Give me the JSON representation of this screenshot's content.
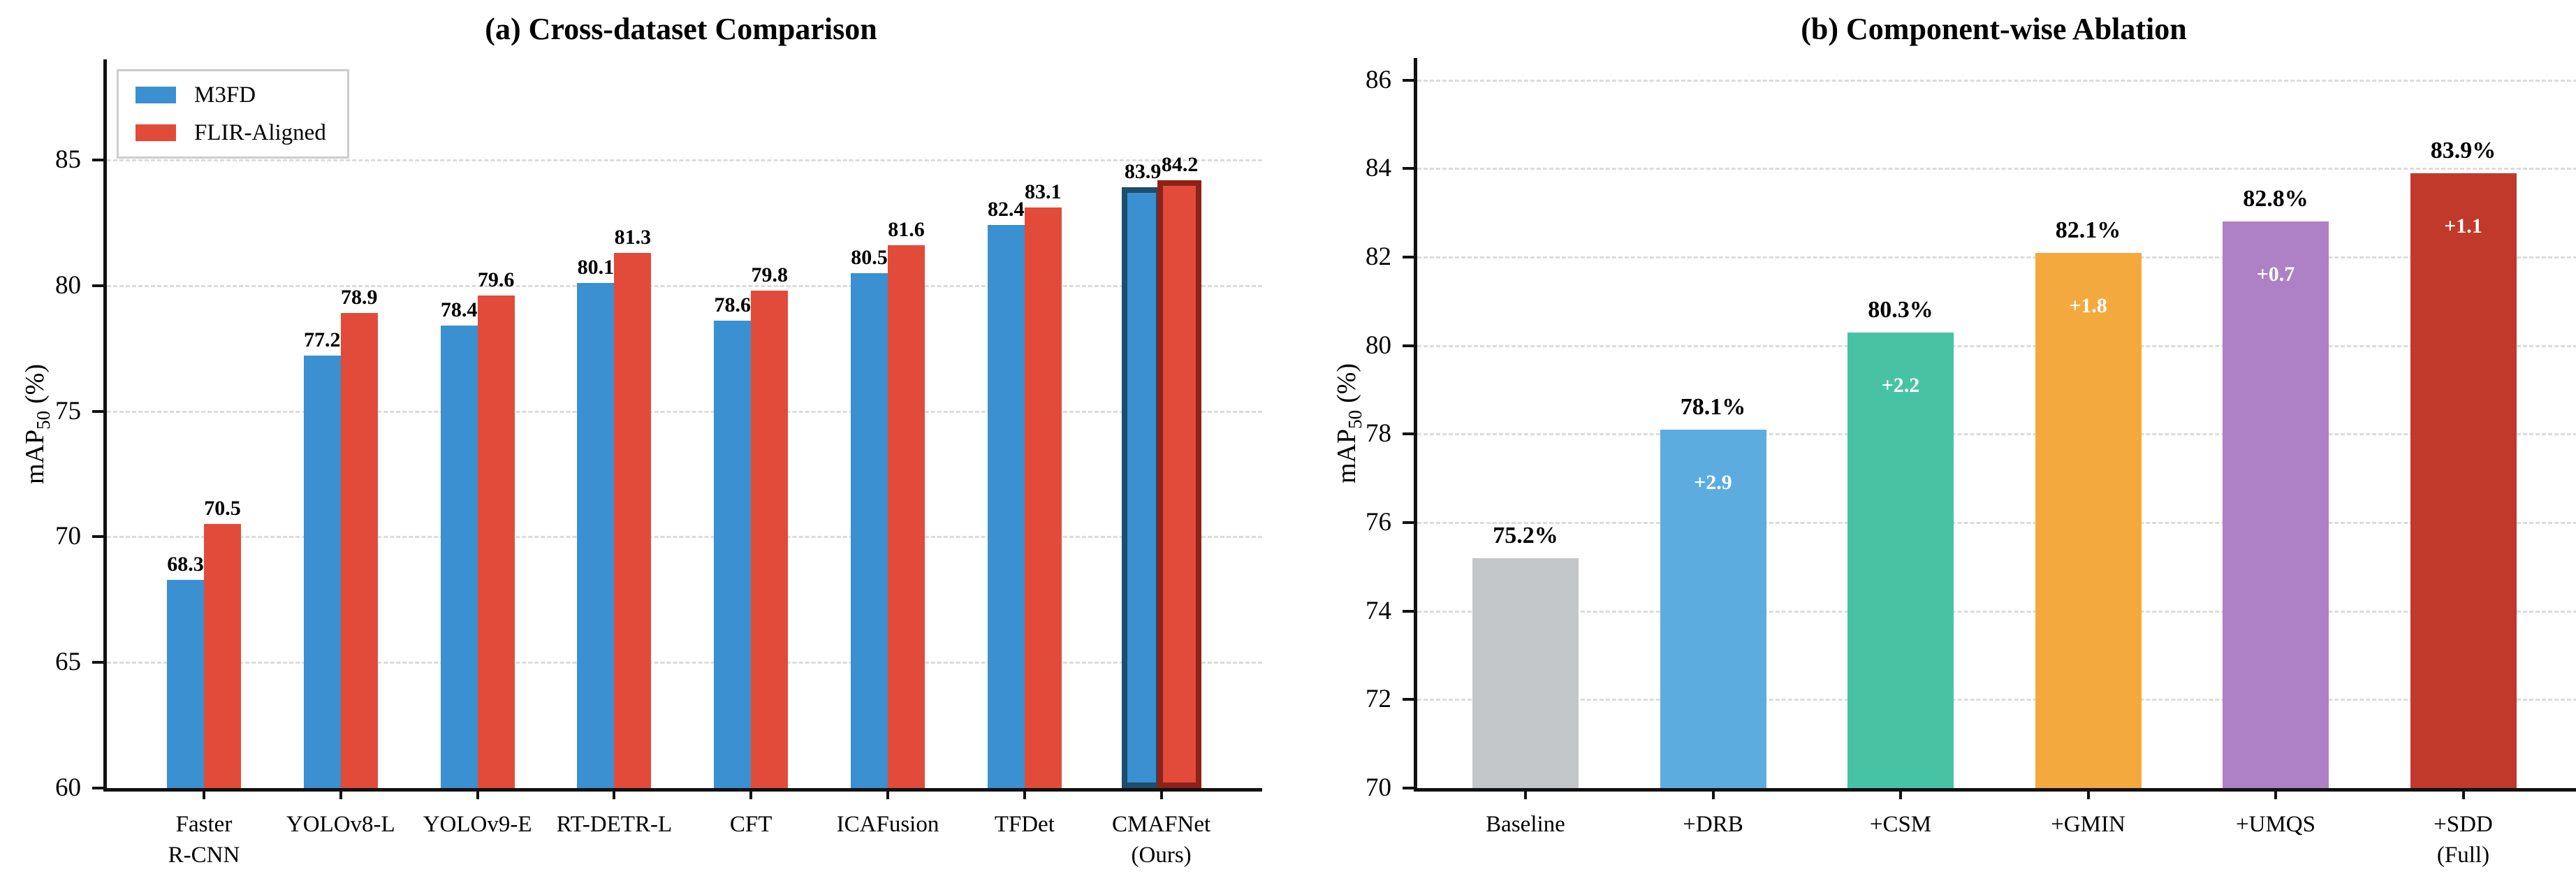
{
  "style": {
    "background": "#ffffff",
    "axis_color": "#111111",
    "grid_color": "#dcdcdc",
    "text_color": "#000000",
    "legend_border_color": "#cccccc",
    "delta_text_color": "#ffffff"
  },
  "chart_data": [
    {
      "id": "a",
      "type": "bar",
      "title": "(a) Cross-dataset Comparison",
      "ylabel": {
        "main": "mAP",
        "sub": "50",
        "unit": "(%)"
      },
      "categories": [
        [
          "Faster",
          "R-CNN"
        ],
        [
          "YOLOv8-L"
        ],
        [
          "YOLOv9-E"
        ],
        [
          "RT-DETR-L"
        ],
        [
          "CFT"
        ],
        [
          "ICAFusion"
        ],
        [
          "TFDet"
        ],
        [
          "CMAFNet",
          "(Ours)"
        ]
      ],
      "series": [
        {
          "name": "M3FD",
          "color": "#3a90d1",
          "values": [
            68.3,
            77.2,
            78.4,
            80.1,
            78.6,
            80.5,
            82.4,
            83.9
          ]
        },
        {
          "name": "FLIR-Aligned",
          "color": "#e24b3a",
          "values": [
            70.5,
            78.9,
            79.6,
            81.3,
            79.8,
            81.6,
            83.1,
            84.2
          ]
        }
      ],
      "highlight": {
        "category_index": 7,
        "edge_colors": [
          "#1d4e6e",
          "#8e2217"
        ]
      },
      "ylim": [
        60,
        89
      ],
      "yticks": [
        60,
        65,
        70,
        75,
        80,
        85
      ],
      "grid": "horizontal-dashed",
      "legend_position": "upper-left"
    },
    {
      "id": "b",
      "type": "bar",
      "title": "(b) Component-wise Ablation",
      "ylabel": {
        "main": "mAP",
        "sub": "50",
        "unit": "(%)"
      },
      "categories": [
        [
          "Baseline"
        ],
        [
          "+DRB"
        ],
        [
          "+CSM"
        ],
        [
          "+GMIN"
        ],
        [
          "+UMQS"
        ],
        [
          "+SDD",
          "(Full)"
        ]
      ],
      "values": [
        75.2,
        78.1,
        80.3,
        82.1,
        82.8,
        83.9
      ],
      "value_labels": [
        "75.2%",
        "78.1%",
        "80.3%",
        "82.1%",
        "82.8%",
        "83.9%"
      ],
      "delta_labels": [
        "",
        "+2.9",
        "+2.2",
        "+1.8",
        "+0.7",
        "+1.1"
      ],
      "bar_colors": [
        "#c4c7ca",
        "#5dace0",
        "#47c3a4",
        "#f4a93f",
        "#ae80c6",
        "#c0392b"
      ],
      "ylim": [
        70,
        86.5
      ],
      "yticks": [
        70,
        72,
        74,
        76,
        78,
        80,
        82,
        84,
        86
      ],
      "grid": "horizontal-dashed"
    }
  ]
}
